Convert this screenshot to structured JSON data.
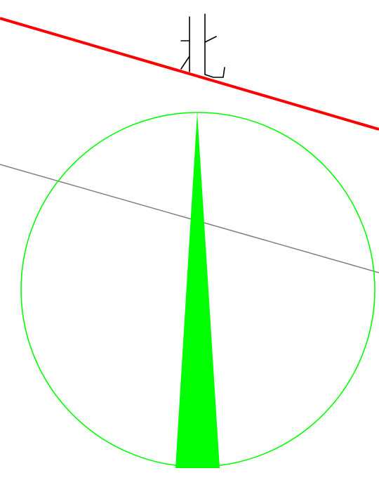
{
  "drawing": {
    "north_char": "北",
    "colors": {
      "background": "#ffffff",
      "north_glyph": "#000000",
      "red_line": "#ff0000",
      "gray_line": "#808080",
      "compass_circle": "#00ff00",
      "compass_needle": "#00ff00"
    },
    "icons": {
      "north_glyph": "north-arrow-icon",
      "compass": "compass-icon"
    }
  }
}
